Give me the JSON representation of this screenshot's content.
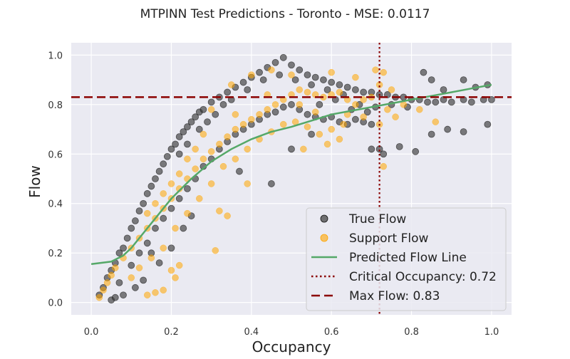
{
  "chart_data": {
    "type": "scatter",
    "title": "MTPINN Test Predictions - Toronto - MSE: 0.0117",
    "xlabel": "Occupancy",
    "ylabel": "Flow",
    "xlim": [
      -0.05,
      1.05
    ],
    "ylim": [
      -0.05,
      1.05
    ],
    "xticks": [
      0.0,
      0.2,
      0.4,
      0.6,
      0.8,
      1.0
    ],
    "xtick_labels": [
      "0.0",
      "0.2",
      "0.4",
      "0.6",
      "0.8",
      "1.0"
    ],
    "yticks": [
      0.0,
      0.2,
      0.4,
      0.6,
      0.8,
      1.0
    ],
    "ytick_labels": [
      "0.0",
      "0.2",
      "0.4",
      "0.6",
      "0.8",
      "1.0"
    ],
    "grid": true,
    "legend_position": "lower-right",
    "series": [
      {
        "name": "True Flow",
        "kind": "scatter",
        "color": "#3a3a3a",
        "points": [
          [
            0.02,
            0.03
          ],
          [
            0.03,
            0.06
          ],
          [
            0.04,
            0.1
          ],
          [
            0.05,
            0.13
          ],
          [
            0.06,
            0.16
          ],
          [
            0.07,
            0.2
          ],
          [
            0.08,
            0.22
          ],
          [
            0.09,
            0.26
          ],
          [
            0.1,
            0.3
          ],
          [
            0.11,
            0.33
          ],
          [
            0.12,
            0.37
          ],
          [
            0.13,
            0.4
          ],
          [
            0.14,
            0.44
          ],
          [
            0.15,
            0.47
          ],
          [
            0.16,
            0.5
          ],
          [
            0.17,
            0.53
          ],
          [
            0.18,
            0.56
          ],
          [
            0.19,
            0.59
          ],
          [
            0.2,
            0.62
          ],
          [
            0.21,
            0.64
          ],
          [
            0.22,
            0.67
          ],
          [
            0.23,
            0.69
          ],
          [
            0.24,
            0.71
          ],
          [
            0.25,
            0.73
          ],
          [
            0.26,
            0.75
          ],
          [
            0.27,
            0.77
          ],
          [
            0.28,
            0.78
          ],
          [
            0.3,
            0.81
          ],
          [
            0.32,
            0.83
          ],
          [
            0.34,
            0.85
          ],
          [
            0.36,
            0.87
          ],
          [
            0.38,
            0.89
          ],
          [
            0.4,
            0.91
          ],
          [
            0.42,
            0.93
          ],
          [
            0.44,
            0.95
          ],
          [
            0.46,
            0.97
          ],
          [
            0.48,
            0.99
          ],
          [
            0.5,
            0.96
          ],
          [
            0.52,
            0.94
          ],
          [
            0.54,
            0.92
          ],
          [
            0.56,
            0.91
          ],
          [
            0.58,
            0.9
          ],
          [
            0.6,
            0.89
          ],
          [
            0.62,
            0.88
          ],
          [
            0.64,
            0.87
          ],
          [
            0.66,
            0.86
          ],
          [
            0.68,
            0.85
          ],
          [
            0.7,
            0.85
          ],
          [
            0.72,
            0.84
          ],
          [
            0.74,
            0.84
          ],
          [
            0.76,
            0.83
          ],
          [
            0.78,
            0.83
          ],
          [
            0.8,
            0.82
          ],
          [
            0.82,
            0.82
          ],
          [
            0.84,
            0.81
          ],
          [
            0.86,
            0.81
          ],
          [
            0.88,
            0.82
          ],
          [
            0.9,
            0.81
          ],
          [
            0.93,
            0.82
          ],
          [
            0.95,
            0.81
          ],
          [
            0.98,
            0.82
          ],
          [
            1.0,
            0.82
          ],
          [
            0.1,
            0.15
          ],
          [
            0.12,
            0.2
          ],
          [
            0.14,
            0.24
          ],
          [
            0.16,
            0.3
          ],
          [
            0.18,
            0.34
          ],
          [
            0.2,
            0.38
          ],
          [
            0.22,
            0.42
          ],
          [
            0.24,
            0.46
          ],
          [
            0.26,
            0.5
          ],
          [
            0.28,
            0.55
          ],
          [
            0.3,
            0.58
          ],
          [
            0.32,
            0.62
          ],
          [
            0.34,
            0.65
          ],
          [
            0.36,
            0.68
          ],
          [
            0.38,
            0.7
          ],
          [
            0.4,
            0.72
          ],
          [
            0.42,
            0.74
          ],
          [
            0.44,
            0.76
          ],
          [
            0.46,
            0.77
          ],
          [
            0.48,
            0.79
          ],
          [
            0.5,
            0.8
          ],
          [
            0.52,
            0.78
          ],
          [
            0.54,
            0.76
          ],
          [
            0.56,
            0.75
          ],
          [
            0.58,
            0.74
          ],
          [
            0.6,
            0.75
          ],
          [
            0.62,
            0.73
          ],
          [
            0.64,
            0.72
          ],
          [
            0.66,
            0.74
          ],
          [
            0.68,
            0.73
          ],
          [
            0.7,
            0.72
          ],
          [
            0.72,
            0.62
          ],
          [
            0.73,
            0.6
          ],
          [
            0.77,
            0.63
          ],
          [
            0.81,
            0.61
          ],
          [
            0.7,
            0.62
          ],
          [
            0.85,
            0.68
          ],
          [
            0.89,
            0.7
          ],
          [
            0.93,
            0.69
          ],
          [
            0.88,
            0.86
          ],
          [
            0.93,
            0.9
          ],
          [
            0.96,
            0.87
          ],
          [
            0.99,
            0.72
          ],
          [
            0.83,
            0.93
          ],
          [
            0.99,
            0.88
          ],
          [
            0.85,
            0.9
          ],
          [
            0.45,
            0.48
          ],
          [
            0.37,
            0.53
          ],
          [
            0.5,
            0.62
          ],
          [
            0.55,
            0.68
          ],
          [
            0.15,
            0.2
          ],
          [
            0.17,
            0.16
          ],
          [
            0.2,
            0.22
          ],
          [
            0.23,
            0.3
          ],
          [
            0.25,
            0.35
          ],
          [
            0.13,
            0.09
          ],
          [
            0.11,
            0.06
          ],
          [
            0.08,
            0.03
          ],
          [
            0.05,
            0.01
          ],
          [
            0.07,
            0.08
          ],
          [
            0.06,
            0.02
          ],
          [
            0.22,
            0.6
          ],
          [
            0.24,
            0.64
          ],
          [
            0.27,
            0.7
          ],
          [
            0.29,
            0.73
          ],
          [
            0.31,
            0.76
          ],
          [
            0.33,
            0.8
          ],
          [
            0.35,
            0.82
          ],
          [
            0.39,
            0.86
          ],
          [
            0.43,
            0.9
          ],
          [
            0.47,
            0.92
          ],
          [
            0.51,
            0.9
          ],
          [
            0.55,
            0.88
          ],
          [
            0.59,
            0.86
          ],
          [
            0.63,
            0.84
          ],
          [
            0.67,
            0.8
          ],
          [
            0.71,
            0.79
          ],
          [
            0.75,
            0.8
          ],
          [
            0.79,
            0.79
          ],
          [
            0.57,
            0.8
          ],
          [
            0.61,
            0.82
          ],
          [
            0.65,
            0.78
          ],
          [
            0.69,
            0.77
          ]
        ]
      },
      {
        "name": "Support Flow",
        "kind": "scatter",
        "color": "#ffa500",
        "points": [
          [
            0.02,
            0.02
          ],
          [
            0.03,
            0.05
          ],
          [
            0.04,
            0.08
          ],
          [
            0.05,
            0.11
          ],
          [
            0.06,
            0.14
          ],
          [
            0.08,
            0.18
          ],
          [
            0.1,
            0.22
          ],
          [
            0.12,
            0.26
          ],
          [
            0.14,
            0.3
          ],
          [
            0.16,
            0.34
          ],
          [
            0.18,
            0.38
          ],
          [
            0.2,
            0.42
          ],
          [
            0.22,
            0.46
          ],
          [
            0.24,
            0.5
          ],
          [
            0.26,
            0.54
          ],
          [
            0.28,
            0.58
          ],
          [
            0.3,
            0.61
          ],
          [
            0.32,
            0.64
          ],
          [
            0.34,
            0.67
          ],
          [
            0.36,
            0.7
          ],
          [
            0.38,
            0.72
          ],
          [
            0.4,
            0.74
          ],
          [
            0.42,
            0.76
          ],
          [
            0.44,
            0.78
          ],
          [
            0.46,
            0.8
          ],
          [
            0.48,
            0.82
          ],
          [
            0.5,
            0.84
          ],
          [
            0.52,
            0.86
          ],
          [
            0.54,
            0.85
          ],
          [
            0.56,
            0.84
          ],
          [
            0.58,
            0.83
          ],
          [
            0.6,
            0.84
          ],
          [
            0.62,
            0.85
          ],
          [
            0.64,
            0.82
          ],
          [
            0.66,
            0.8
          ],
          [
            0.68,
            0.82
          ],
          [
            0.7,
            0.83
          ],
          [
            0.72,
            0.88
          ],
          [
            0.73,
            0.93
          ],
          [
            0.75,
            0.86
          ],
          [
            0.74,
            0.78
          ],
          [
            0.76,
            0.75
          ],
          [
            0.78,
            0.8
          ],
          [
            0.82,
            0.78
          ],
          [
            0.86,
            0.73
          ],
          [
            0.1,
            0.1
          ],
          [
            0.12,
            0.14
          ],
          [
            0.15,
            0.18
          ],
          [
            0.18,
            0.22
          ],
          [
            0.21,
            0.3
          ],
          [
            0.24,
            0.36
          ],
          [
            0.27,
            0.42
          ],
          [
            0.3,
            0.48
          ],
          [
            0.33,
            0.55
          ],
          [
            0.36,
            0.58
          ],
          [
            0.39,
            0.62
          ],
          [
            0.42,
            0.66
          ],
          [
            0.45,
            0.69
          ],
          [
            0.48,
            0.72
          ],
          [
            0.51,
            0.73
          ],
          [
            0.54,
            0.71
          ],
          [
            0.57,
            0.68
          ],
          [
            0.6,
            0.7
          ],
          [
            0.63,
            0.72
          ],
          [
            0.59,
            0.64
          ],
          [
            0.62,
            0.66
          ],
          [
            0.53,
            0.62
          ],
          [
            0.31,
            0.21
          ],
          [
            0.22,
            0.15
          ],
          [
            0.2,
            0.13
          ],
          [
            0.18,
            0.05
          ],
          [
            0.16,
            0.04
          ],
          [
            0.14,
            0.03
          ],
          [
            0.21,
            0.1
          ],
          [
            0.34,
            0.35
          ],
          [
            0.39,
            0.48
          ],
          [
            0.32,
            0.37
          ],
          [
            0.73,
            0.55
          ],
          [
            0.72,
            0.72
          ],
          [
            0.71,
            0.94
          ],
          [
            0.35,
            0.88
          ],
          [
            0.4,
            0.92
          ],
          [
            0.45,
            0.94
          ],
          [
            0.5,
            0.92
          ],
          [
            0.6,
            0.93
          ],
          [
            0.66,
            0.91
          ],
          [
            0.3,
            0.78
          ],
          [
            0.28,
            0.68
          ],
          [
            0.26,
            0.62
          ],
          [
            0.24,
            0.58
          ],
          [
            0.22,
            0.52
          ],
          [
            0.2,
            0.48
          ],
          [
            0.18,
            0.44
          ],
          [
            0.16,
            0.4
          ],
          [
            0.14,
            0.36
          ],
          [
            0.36,
            0.76
          ],
          [
            0.44,
            0.84
          ],
          [
            0.52,
            0.8
          ],
          [
            0.56,
            0.77
          ],
          [
            0.64,
            0.76
          ],
          [
            0.68,
            0.75
          ]
        ]
      },
      {
        "name": "Predicted Flow Line",
        "kind": "line",
        "color": "#55a868",
        "points": [
          [
            0.0,
            0.155
          ],
          [
            0.05,
            0.165
          ],
          [
            0.08,
            0.19
          ],
          [
            0.1,
            0.22
          ],
          [
            0.13,
            0.28
          ],
          [
            0.16,
            0.34
          ],
          [
            0.18,
            0.38
          ],
          [
            0.2,
            0.42
          ],
          [
            0.25,
            0.5
          ],
          [
            0.3,
            0.57
          ],
          [
            0.35,
            0.62
          ],
          [
            0.4,
            0.66
          ],
          [
            0.45,
            0.69
          ],
          [
            0.5,
            0.71
          ],
          [
            0.55,
            0.735
          ],
          [
            0.6,
            0.76
          ],
          [
            0.65,
            0.775
          ],
          [
            0.7,
            0.79
          ],
          [
            0.75,
            0.805
          ],
          [
            0.8,
            0.82
          ],
          [
            0.85,
            0.835
          ],
          [
            0.9,
            0.85
          ],
          [
            0.95,
            0.865
          ],
          [
            1.0,
            0.88
          ]
        ]
      },
      {
        "name": "Critical Occupancy: 0.72",
        "kind": "vline",
        "color": "#8b0000",
        "value": 0.72
      },
      {
        "name": "Max Flow: 0.83",
        "kind": "hline",
        "color": "#8b0000",
        "value": 0.83
      }
    ]
  }
}
